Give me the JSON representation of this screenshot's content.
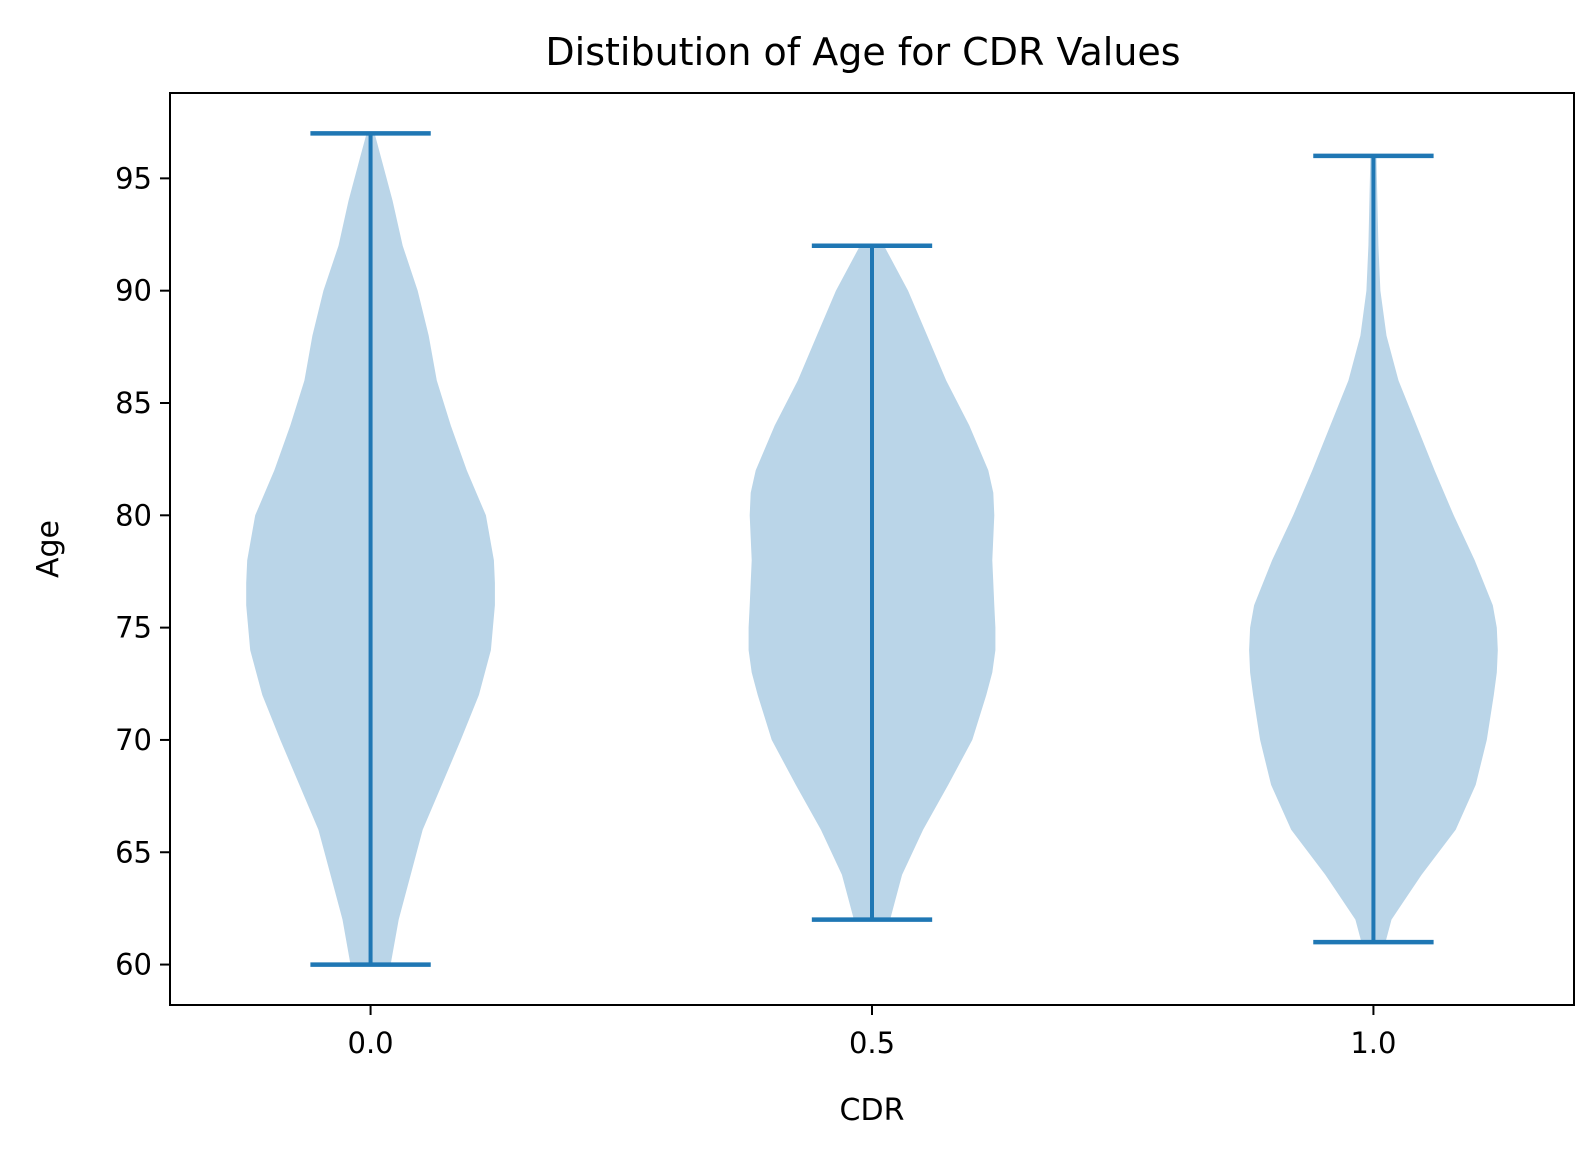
{
  "chart_data": {
    "type": "violin",
    "title": "Distibution of Age for CDR Values",
    "xlabel": "CDR",
    "ylabel": "Age",
    "xlim": [
      -0.2,
      1.2
    ],
    "ylim": [
      58.2,
      98.8
    ],
    "xticks": [
      0.0,
      0.5,
      1.0
    ],
    "xtick_labels": [
      "0.0",
      "0.5",
      "1.0"
    ],
    "yticks": [
      60,
      65,
      70,
      75,
      80,
      85,
      90,
      95
    ],
    "ytick_labels": [
      "60",
      "65",
      "70",
      "75",
      "80",
      "85",
      "90",
      "95"
    ],
    "grid": false,
    "colors": {
      "body": "#bad5e8",
      "lines": "#1f77b4"
    },
    "violins": [
      {
        "position": 0.0,
        "min": 60,
        "max": 97,
        "density_half_width": [
          [
            60,
            0.02
          ],
          [
            62,
            0.028
          ],
          [
            64,
            0.04
          ],
          [
            66,
            0.052
          ],
          [
            68,
            0.071
          ],
          [
            70,
            0.09
          ],
          [
            72,
            0.108
          ],
          [
            74,
            0.12
          ],
          [
            76,
            0.124
          ],
          [
            77,
            0.124
          ],
          [
            78,
            0.123
          ],
          [
            80,
            0.115
          ],
          [
            82,
            0.096
          ],
          [
            84,
            0.08
          ],
          [
            86,
            0.066
          ],
          [
            88,
            0.058
          ],
          [
            90,
            0.047
          ],
          [
            92,
            0.032
          ],
          [
            94,
            0.022
          ],
          [
            96,
            0.01
          ],
          [
            97,
            0.004
          ]
        ]
      },
      {
        "position": 0.5,
        "min": 62,
        "max": 92,
        "density_half_width": [
          [
            62,
            0.018
          ],
          [
            64,
            0.03
          ],
          [
            66,
            0.051
          ],
          [
            68,
            0.076
          ],
          [
            70,
            0.1
          ],
          [
            72,
            0.114
          ],
          [
            73,
            0.12
          ],
          [
            74,
            0.123
          ],
          [
            75,
            0.123
          ],
          [
            76,
            0.122
          ],
          [
            77,
            0.121
          ],
          [
            78,
            0.12
          ],
          [
            79,
            0.121
          ],
          [
            80,
            0.122
          ],
          [
            81,
            0.121
          ],
          [
            82,
            0.116
          ],
          [
            84,
            0.097
          ],
          [
            86,
            0.074
          ],
          [
            88,
            0.055
          ],
          [
            90,
            0.036
          ],
          [
            92,
            0.012
          ]
        ]
      },
      {
        "position": 1.0,
        "min": 61,
        "max": 96,
        "density_half_width": [
          [
            61,
            0.012
          ],
          [
            62,
            0.018
          ],
          [
            64,
            0.048
          ],
          [
            66,
            0.082
          ],
          [
            68,
            0.102
          ],
          [
            70,
            0.113
          ],
          [
            72,
            0.12
          ],
          [
            73,
            0.123
          ],
          [
            74,
            0.124
          ],
          [
            75,
            0.123
          ],
          [
            76,
            0.119
          ],
          [
            78,
            0.101
          ],
          [
            80,
            0.08
          ],
          [
            82,
            0.061
          ],
          [
            84,
            0.043
          ],
          [
            86,
            0.025
          ],
          [
            88,
            0.013
          ],
          [
            90,
            0.007
          ],
          [
            92,
            0.005
          ],
          [
            94,
            0.004
          ],
          [
            96,
            0.003
          ]
        ]
      }
    ]
  }
}
